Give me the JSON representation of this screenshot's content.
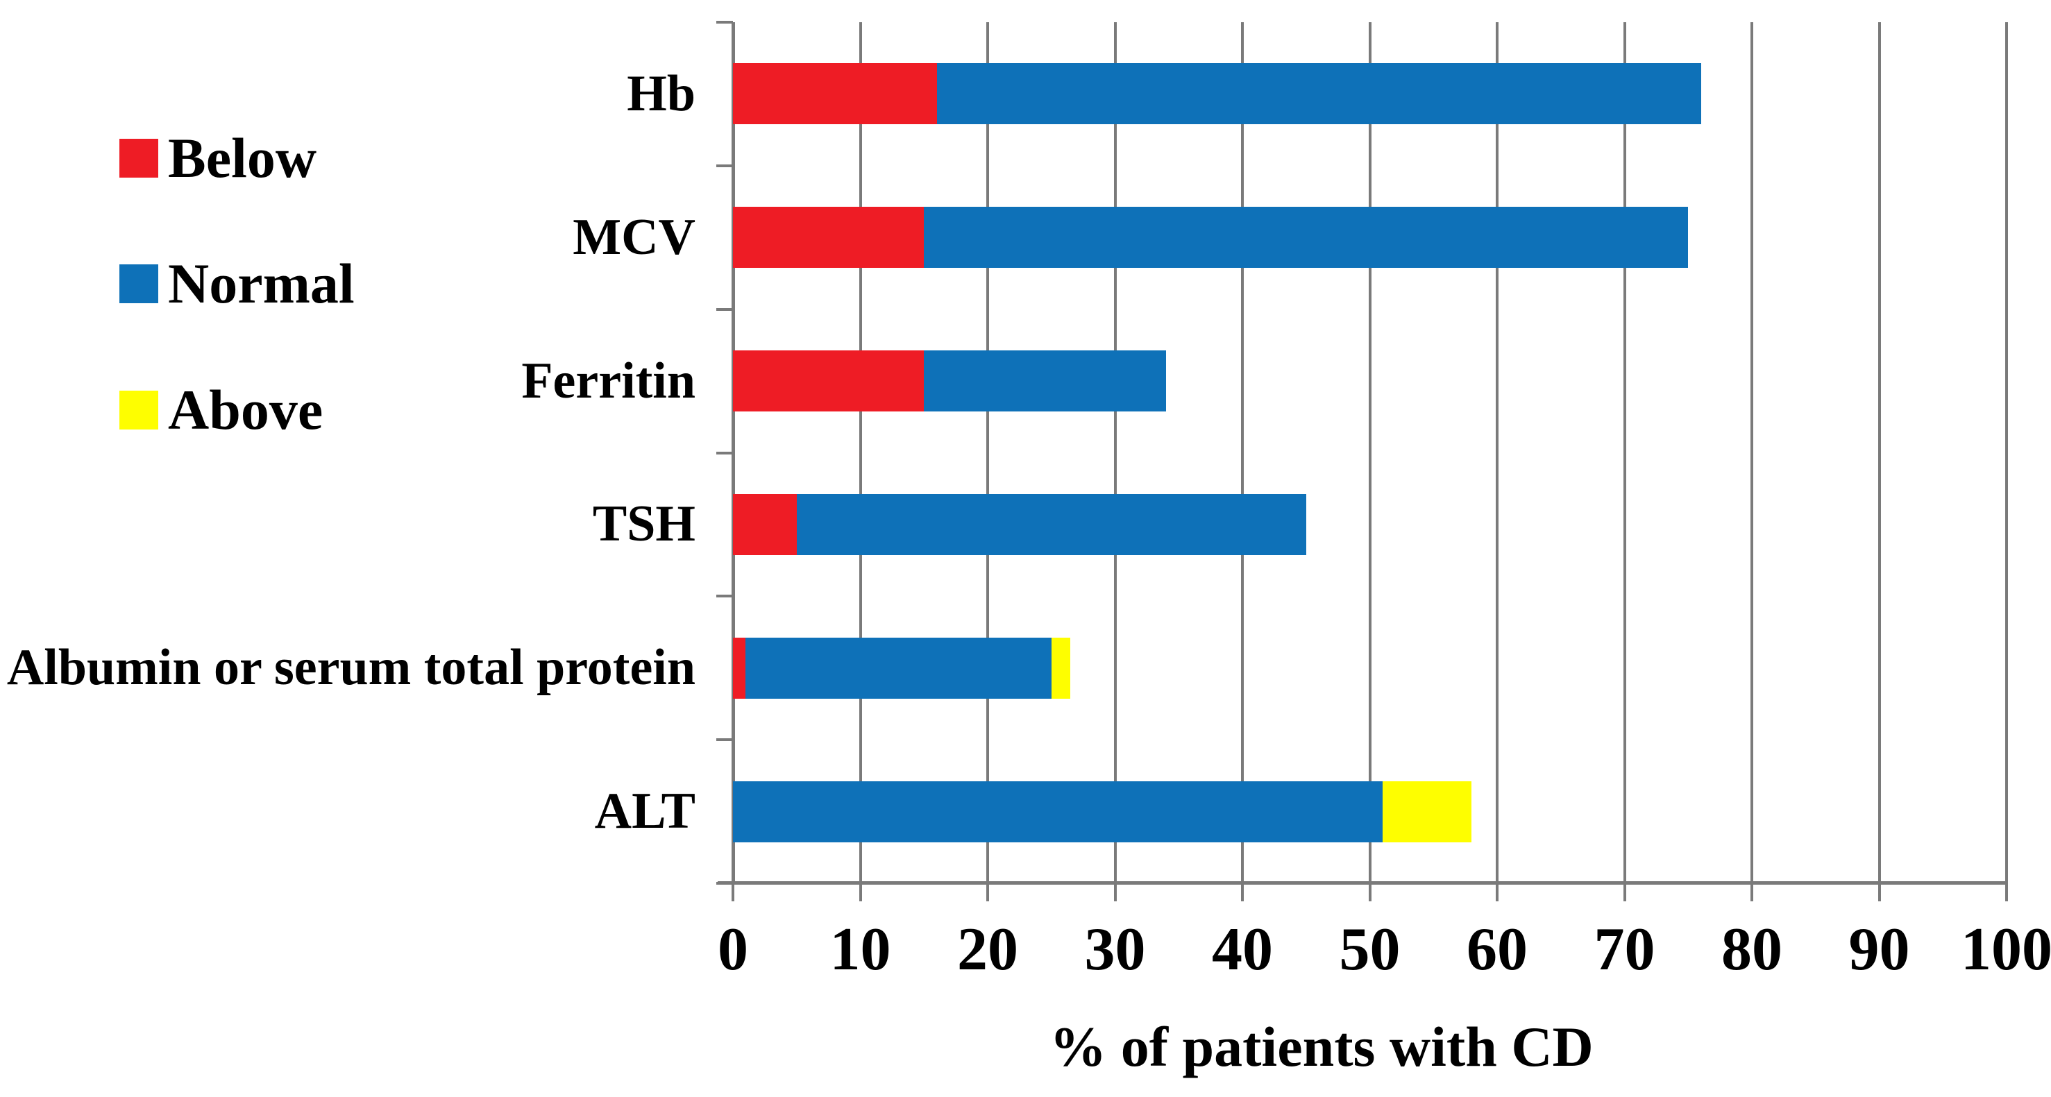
{
  "figure": {
    "xlabel": "% of patients with CD",
    "text_color": "#000000",
    "axis_color": "#7a7a7a",
    "background": "#ffffff"
  },
  "legend": {
    "items": [
      {
        "label": "Below",
        "color": "#ee1c25"
      },
      {
        "label": "Normal",
        "color": "#0e71b8"
      },
      {
        "label": "Above",
        "color": "#fefe00"
      }
    ]
  },
  "chart_data": {
    "type": "bar",
    "orientation": "horizontal",
    "stacked": true,
    "title": "",
    "xlabel": "% of patients with CD",
    "ylabel": "",
    "xlim": [
      0,
      100
    ],
    "xticks": [
      0,
      10,
      20,
      30,
      40,
      50,
      60,
      70,
      80,
      90,
      100
    ],
    "grid": true,
    "legend_position": "outside-upper-left",
    "categories": [
      "Hb",
      "MCV",
      "Ferritin",
      "TSH",
      "Albumin or serum total protein",
      "ALT"
    ],
    "series": [
      {
        "name": "Below",
        "color": "#ee1c25",
        "values": [
          16,
          15,
          15,
          5,
          1,
          0
        ]
      },
      {
        "name": "Normal",
        "color": "#0e71b8",
        "values": [
          60,
          60,
          19,
          40,
          24,
          51
        ]
      },
      {
        "name": "Above",
        "color": "#fefe00",
        "values": [
          0,
          0,
          0,
          0,
          1.5,
          7
        ]
      }
    ],
    "stacked_totals": [
      76,
      75,
      34,
      45,
      26.5,
      58
    ]
  }
}
